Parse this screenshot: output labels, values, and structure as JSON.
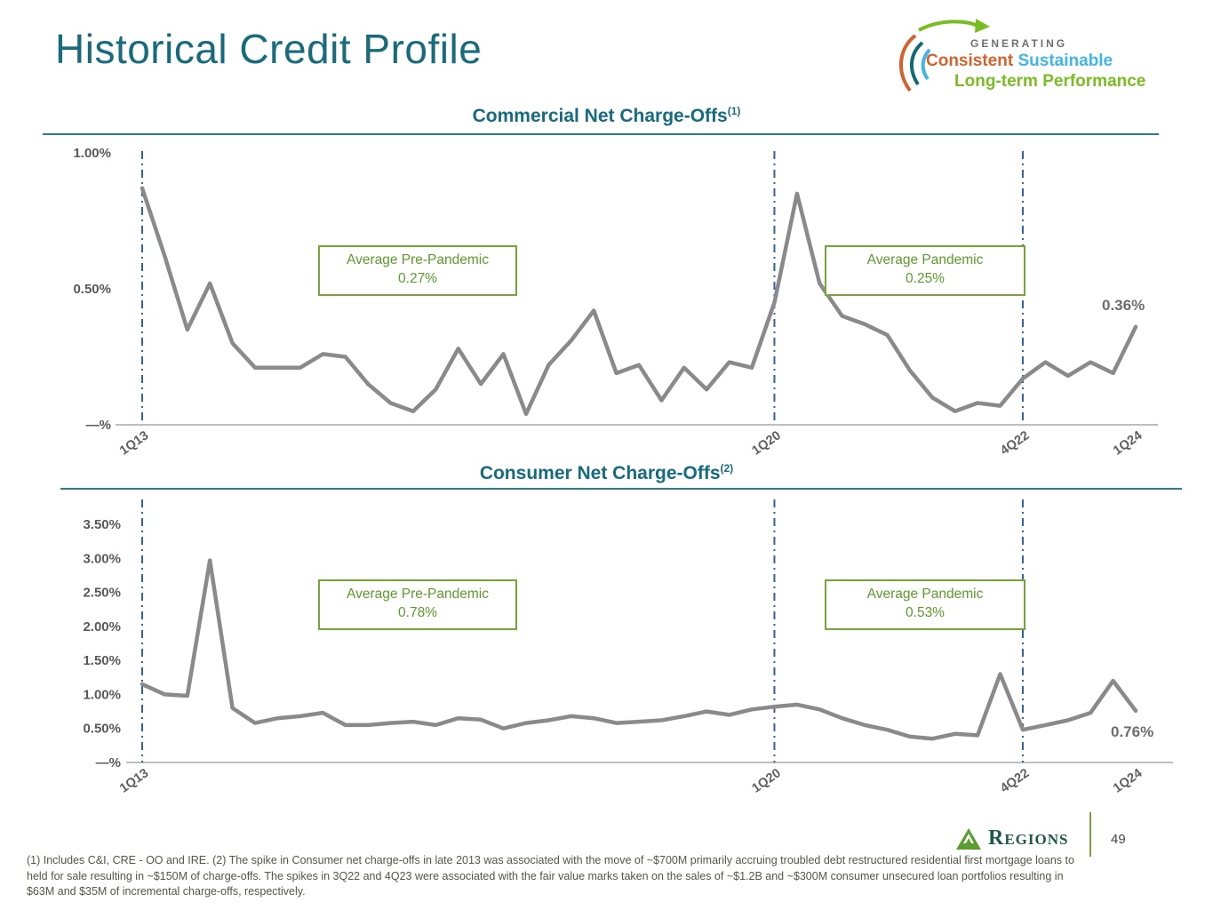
{
  "header": {
    "title": "Historical Credit Profile",
    "brand_tagline": {
      "line1": "GENERATING",
      "word1": "Consistent",
      "word2": "Sustainable",
      "line3": "Long-term Performance"
    }
  },
  "colors": {
    "title_teal": "#176B7D",
    "rule_teal": "#2A7D8E",
    "data_line_gray": "#8A8A8A",
    "dashed_vline_blue": "#2E62A0",
    "annotation_green": "#76A636",
    "tagline_orange": "#D4622D",
    "tagline_light_blue": "#41B6E6",
    "tagline_green": "#78BE20",
    "regions_green": "#5A9E2F",
    "regions_wordmark_green": "#1E5B45"
  },
  "chart_data": [
    {
      "type": "line",
      "title": "Commercial Net Charge-Offs",
      "footnote_ref": "(1)",
      "unit": "%",
      "x_range_note": "quarterly from 1Q13 to 1Q24",
      "ylim": [
        0,
        1.0
      ],
      "grid": false,
      "legend": false,
      "y_ticks": [
        {
          "label": "1.00%",
          "value": 1.0
        },
        {
          "label": "0.50%",
          "value": 0.5
        },
        {
          "label": "—%",
          "value": 0
        }
      ],
      "x_ticks": [
        {
          "label": "1Q13",
          "index": 0
        },
        {
          "label": "1Q20",
          "index": 28
        },
        {
          "label": "4Q22",
          "index": 39
        },
        {
          "label": "1Q24",
          "index": 44
        }
      ],
      "dashed_vline_indices": [
        0,
        28,
        39
      ],
      "values": [
        0.87,
        0.62,
        0.35,
        0.52,
        0.3,
        0.21,
        0.21,
        0.21,
        0.26,
        0.25,
        0.15,
        0.08,
        0.05,
        0.13,
        0.28,
        0.15,
        0.26,
        0.04,
        0.22,
        0.31,
        0.42,
        0.19,
        0.22,
        0.09,
        0.21,
        0.13,
        0.23,
        0.21,
        0.45,
        0.85,
        0.52,
        0.4,
        0.37,
        0.33,
        0.2,
        0.1,
        0.05,
        0.08,
        0.07,
        0.17,
        0.23,
        0.18,
        0.23,
        0.19,
        0.36
      ],
      "annotations": [
        {
          "label": "Average Pre-Pandemic",
          "value": "0.27%"
        },
        {
          "label": "Average Pandemic",
          "value": "0.25%"
        }
      ],
      "end_label": "0.36%"
    },
    {
      "type": "line",
      "title": "Consumer Net Charge-Offs",
      "footnote_ref": "(2)",
      "unit": "%",
      "x_range_note": "quarterly from 1Q13 to 1Q24",
      "ylim": [
        0,
        3.5
      ],
      "grid": false,
      "legend": false,
      "y_ticks": [
        {
          "label": "3.50%",
          "value": 3.5
        },
        {
          "label": "3.00%",
          "value": 3.0
        },
        {
          "label": "2.50%",
          "value": 2.5
        },
        {
          "label": "2.00%",
          "value": 2.0
        },
        {
          "label": "1.50%",
          "value": 1.5
        },
        {
          "label": "1.00%",
          "value": 1.0
        },
        {
          "label": "0.50%",
          "value": 0.5
        },
        {
          "label": "—%",
          "value": 0
        }
      ],
      "x_ticks": [
        {
          "label": "1Q13",
          "index": 0
        },
        {
          "label": "1Q20",
          "index": 28
        },
        {
          "label": "4Q22",
          "index": 39
        },
        {
          "label": "1Q24",
          "index": 44
        }
      ],
      "dashed_vline_indices": [
        0,
        28,
        39
      ],
      "values": [
        1.15,
        1.0,
        0.98,
        2.97,
        0.8,
        0.58,
        0.65,
        0.68,
        0.73,
        0.55,
        0.55,
        0.58,
        0.6,
        0.55,
        0.65,
        0.63,
        0.5,
        0.58,
        0.62,
        0.68,
        0.65,
        0.58,
        0.6,
        0.62,
        0.68,
        0.75,
        0.7,
        0.78,
        0.82,
        0.85,
        0.78,
        0.65,
        0.55,
        0.48,
        0.38,
        0.35,
        0.42,
        0.4,
        1.3,
        0.48,
        0.55,
        0.62,
        0.73,
        1.2,
        0.76
      ],
      "annotations": [
        {
          "label": "Average Pre-Pandemic",
          "value": "0.78%"
        },
        {
          "label": "Average Pandemic",
          "value": "0.53%"
        }
      ],
      "end_label": "0.76%"
    }
  ],
  "footer": {
    "brand": "Regions",
    "page_number": "49"
  },
  "footnote": "(1) Includes C&I, CRE - OO and IRE.  (2) The spike in Consumer net charge-offs in late 2013 was associated with the move of ~$700M primarily accruing troubled debt restructured residential first mortgage loans to held for sale resulting in ~$150M of charge-offs. The spikes in 3Q22 and 4Q23 were associated with the fair value marks taken on the sales of ~$1.2B and ~$300M consumer unsecured loan portfolios resulting in $63M and $35M of incremental charge-offs, respectively."
}
